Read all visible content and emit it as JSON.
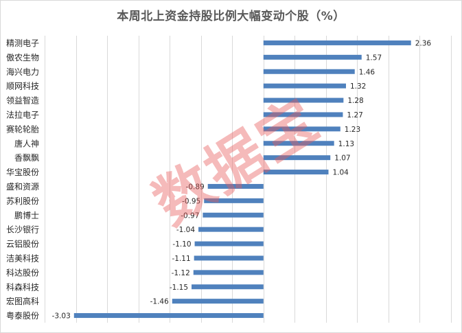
{
  "chart_data": {
    "type": "bar",
    "orientation": "horizontal",
    "title": "本周北上资金持股比例大幅变动个股（%）",
    "xlim": [
      -3.5,
      3.0
    ],
    "grid": "vertical",
    "legend": "none",
    "categories": [
      "精测电子",
      "傲农生物",
      "海兴电力",
      "顺网科技",
      "领益智造",
      "法拉电子",
      "赛轮轮胎",
      "唐人神",
      "香飘飘",
      "华宝股份",
      "盛和资源",
      "苏利股份",
      "鹏博士",
      "长沙银行",
      "云铝股份",
      "洁美科技",
      "科达股份",
      "科森科技",
      "宏图高科",
      "粤泰股份"
    ],
    "values": [
      2.36,
      1.57,
      1.46,
      1.32,
      1.28,
      1.27,
      1.23,
      1.13,
      1.07,
      1.04,
      -0.89,
      -0.95,
      -0.97,
      -1.04,
      -1.1,
      -1.11,
      -1.12,
      -1.15,
      -1.46,
      -3.03
    ],
    "value_labels": [
      "2.36",
      "1.57",
      "1.46",
      "1.32",
      "1.28",
      "1.27",
      "1.23",
      "1.13",
      "1.07",
      "1.04",
      "-0.89",
      "-0.95",
      "-0.97",
      "-1.04",
      "-1.10",
      "-1.11",
      "-1.12",
      "-1.15",
      "-1.46",
      "-3.03"
    ],
    "bar_color": "#4f81bd",
    "grid_color": "#d9d9d9"
  },
  "watermark": "数据宝"
}
